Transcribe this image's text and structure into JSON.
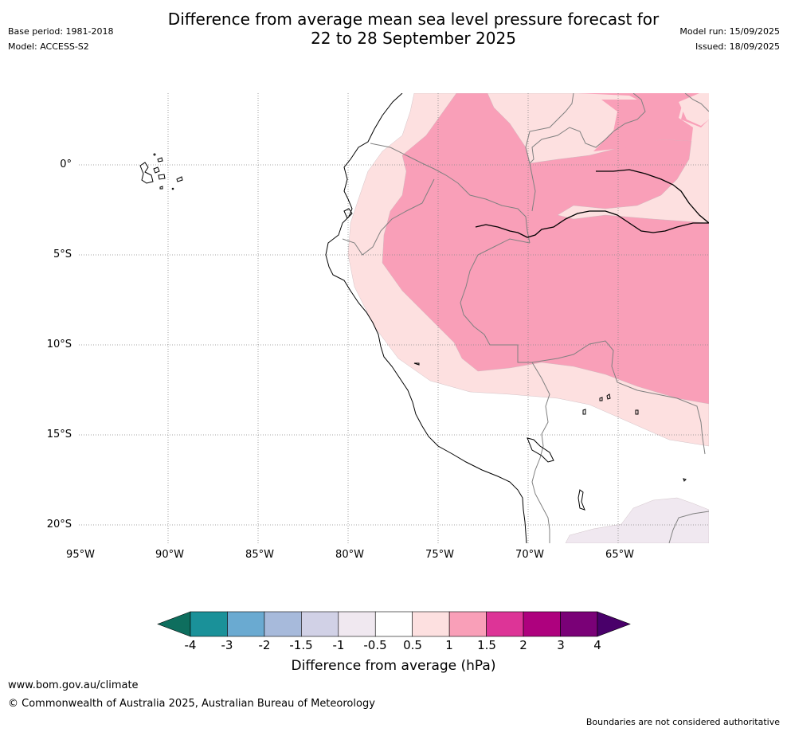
{
  "header": {
    "title_line1": "Difference from average mean sea level pressure forecast for",
    "title_line2": "22 to 28 September 2025",
    "base_period": "Base period: 1981-2018",
    "model": "Model: ACCESS-S2",
    "model_run": "Model run: 15/09/2025",
    "issued": "Issued: 18/09/2025"
  },
  "map": {
    "lat_labels": [
      "0°",
      "5°S",
      "10°S",
      "15°S",
      "20°S"
    ],
    "lon_labels": [
      "95°W",
      "90°W",
      "85°W",
      "80°W",
      "75°W",
      "70°W",
      "65°W"
    ]
  },
  "colorbar": {
    "title": "Difference from average (hPa)",
    "ticks": [
      "-4",
      "-3",
      "-2",
      "-1.5",
      "-1",
      "-0.5",
      "0.5",
      "1",
      "1.5",
      "2",
      "3",
      "4"
    ],
    "colors": [
      "#1a9199",
      "#6aaad1",
      "#a7badb",
      "#d1d1e6",
      "#f0e8f0",
      "#ffffff",
      "#fde0e0",
      "#f99fb8",
      "#dd3497",
      "#ae017e",
      "#7a0177"
    ],
    "under_color": "#0e6e5e",
    "over_color": "#49006a",
    "shade_1_1_5": "#f99fb8",
    "shade_0_5_1": "#fde0e0",
    "shade_neg_0_5_neg_1": "#f0e8f0"
  },
  "footer": {
    "url": "www.bom.gov.au/climate",
    "copyright": "© Commonwealth of Australia 2025, Australian Bureau of Meteorology",
    "disclaimer": "Boundaries are not considered authoritative"
  }
}
